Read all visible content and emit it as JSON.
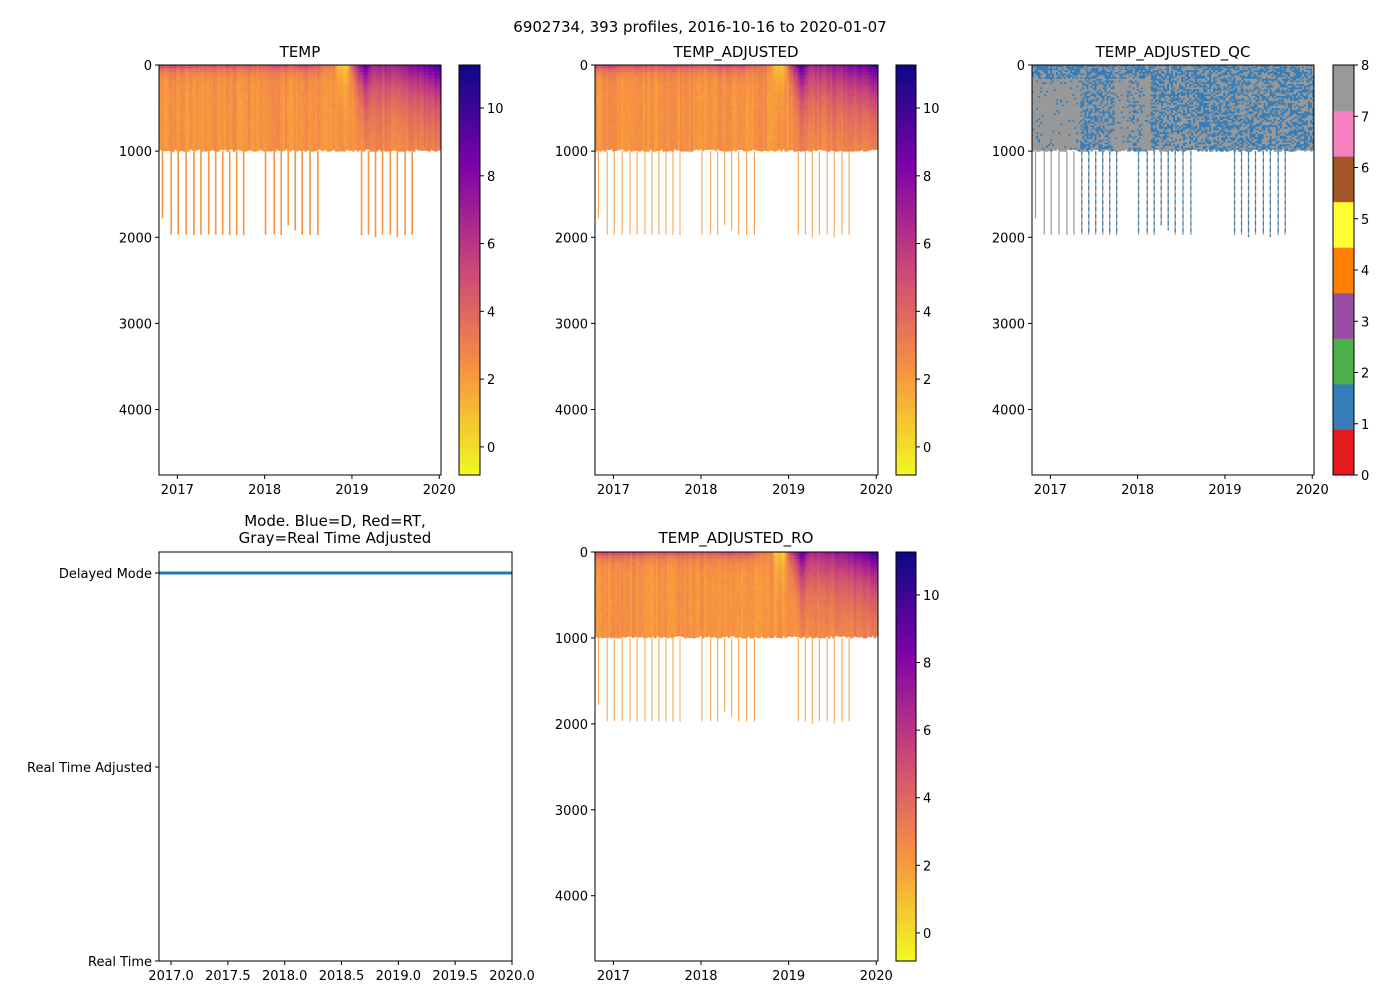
{
  "figure": {
    "suptitle": "6902734, 393 profiles, 2016-10-16 to 2020-01-07",
    "profile_count": 393,
    "date_start": "2016-10-16",
    "date_end": "2020-01-07"
  },
  "chart_data": [
    {
      "id": "temp",
      "type": "heatmap",
      "title": "TEMP",
      "xlim": [
        2016.79,
        2020.02
      ],
      "ylim": [
        4760,
        0
      ],
      "xticks": [
        2017,
        2018,
        2019,
        2020
      ],
      "xtick_labels": [
        "2017",
        "2018",
        "2019",
        "2020"
      ],
      "yticks": [
        0,
        1000,
        2000,
        3000,
        4000
      ],
      "ytick_labels": [
        "0",
        "1000",
        "2000",
        "3000",
        "4000"
      ],
      "colormap": "plasma_r",
      "clim": [
        -0.83,
        11.27
      ],
      "colorbar_ticks": [
        0,
        2,
        4,
        6,
        8,
        10
      ],
      "colorbar_labels": [
        "0",
        "2",
        "4",
        "6",
        "8",
        "10"
      ]
    },
    {
      "id": "adj",
      "type": "heatmap",
      "title": "TEMP_ADJUSTED",
      "xlim": [
        2016.79,
        2020.02
      ],
      "ylim": [
        4760,
        0
      ],
      "xticks": [
        2017,
        2018,
        2019,
        2020
      ],
      "xtick_labels": [
        "2017",
        "2018",
        "2019",
        "2020"
      ],
      "yticks": [
        0,
        1000,
        2000,
        3000,
        4000
      ],
      "ytick_labels": [
        "0",
        "1000",
        "2000",
        "3000",
        "4000"
      ],
      "colormap": "plasma_r",
      "clim": [
        -0.83,
        11.27
      ],
      "colorbar_ticks": [
        0,
        2,
        4,
        6,
        8,
        10
      ],
      "colorbar_labels": [
        "0",
        "2",
        "4",
        "6",
        "8",
        "10"
      ]
    },
    {
      "id": "qc",
      "type": "heatmap",
      "title": "TEMP_ADJUSTED_QC",
      "xlim": [
        2016.79,
        2020.02
      ],
      "ylim": [
        4760,
        0
      ],
      "xticks": [
        2017,
        2018,
        2019,
        2020
      ],
      "xtick_labels": [
        "2017",
        "2018",
        "2019",
        "2020"
      ],
      "yticks": [
        0,
        1000,
        2000,
        3000,
        4000
      ],
      "ytick_labels": [
        "0",
        "1000",
        "2000",
        "3000",
        "4000"
      ],
      "colormap": "Set1",
      "clim": [
        0,
        8
      ],
      "qc_colors": [
        "#e41a1c",
        "#377eb8",
        "#4daf4a",
        "#984ea3",
        "#ff7f00",
        "#ffff33",
        "#a65628",
        "#f781bf",
        "#999999"
      ],
      "qc_values_present": [
        1,
        8
      ],
      "colorbar_ticks": [
        0,
        1,
        2,
        3,
        4,
        5,
        6,
        7,
        8
      ],
      "colorbar_labels": [
        "0",
        "1",
        "2",
        "3",
        "4",
        "5",
        "6",
        "7",
        "8"
      ]
    },
    {
      "id": "mode",
      "type": "line",
      "title": "Mode. Blue=D, Red=RT,",
      "title_line2": "Gray=Real Time Adjusted",
      "xlim": [
        2016.894,
        2020.0
      ],
      "ylim": [
        0,
        2.108
      ],
      "xticks": [
        2017.0,
        2017.5,
        2018.0,
        2018.5,
        2019.0,
        2019.5,
        2020.0
      ],
      "xtick_labels": [
        "2017.0",
        "2017.5",
        "2018.0",
        "2018.5",
        "2019.0",
        "2019.5",
        "2020.0"
      ],
      "yticks": [
        0,
        1,
        2
      ],
      "ytick_labels": [
        "Real Time",
        "Real Time Adjusted",
        "Delayed Mode"
      ],
      "series": [
        {
          "name": "Delayed Mode",
          "color": "#1f77b4",
          "x": [
            2016.79,
            2020.02
          ],
          "y": [
            2,
            2
          ]
        }
      ]
    },
    {
      "id": "ro",
      "type": "heatmap",
      "title": "TEMP_ADJUSTED_RO",
      "xlim": [
        2016.79,
        2020.02
      ],
      "ylim": [
        4760,
        0
      ],
      "xticks": [
        2017,
        2018,
        2019,
        2020
      ],
      "xtick_labels": [
        "2017",
        "2018",
        "2019",
        "2020"
      ],
      "yticks": [
        0,
        1000,
        2000,
        3000,
        4000
      ],
      "ytick_labels": [
        "0",
        "1000",
        "2000",
        "3000",
        "4000"
      ],
      "colormap": "plasma_r",
      "clim": [
        -0.83,
        11.27
      ],
      "colorbar_ticks": [
        0,
        2,
        4,
        6,
        8,
        10
      ],
      "colorbar_labels": [
        "0",
        "2",
        "4",
        "6",
        "8",
        "10"
      ]
    }
  ],
  "temperature_field": {
    "deep_temp_c": 2.3,
    "upper_profile_depth_m": 1000,
    "surface_temp_by_year": [
      [
        2016.79,
        6.0
      ],
      [
        2017.0,
        5.5
      ],
      [
        2017.5,
        5.0
      ],
      [
        2018.0,
        4.8
      ],
      [
        2018.5,
        5.2
      ],
      [
        2018.8,
        3.0
      ],
      [
        2018.85,
        0.6
      ],
      [
        2018.95,
        0.4
      ],
      [
        2019.0,
        4.5
      ],
      [
        2019.15,
        9.5
      ],
      [
        2019.25,
        6.5
      ],
      [
        2019.6,
        7.5
      ],
      [
        2019.9,
        9.0
      ],
      [
        2020.02,
        10.5
      ]
    ],
    "mixing_depth_by_year_m": [
      [
        2016.79,
        60
      ],
      [
        2018.8,
        80
      ],
      [
        2018.9,
        300
      ],
      [
        2019.0,
        120
      ],
      [
        2019.15,
        400
      ],
      [
        2020.02,
        450
      ]
    ],
    "deep_profiles": [
      [
        2016.83,
        1780
      ],
      [
        2016.93,
        1970
      ],
      [
        2017.01,
        1970
      ],
      [
        2017.1,
        1970
      ],
      [
        2017.19,
        1975
      ],
      [
        2017.27,
        1970
      ],
      [
        2017.36,
        1970
      ],
      [
        2017.44,
        1970
      ],
      [
        2017.52,
        1970
      ],
      [
        2017.6,
        1975
      ],
      [
        2017.68,
        1975
      ],
      [
        2017.76,
        1975
      ],
      [
        2018.01,
        1970
      ],
      [
        2018.11,
        1970
      ],
      [
        2018.19,
        1975
      ],
      [
        2018.27,
        1860
      ],
      [
        2018.35,
        1920
      ],
      [
        2018.43,
        1970
      ],
      [
        2018.52,
        1975
      ],
      [
        2018.61,
        1975
      ],
      [
        2019.11,
        1975
      ],
      [
        2019.19,
        1970
      ],
      [
        2019.27,
        2000
      ],
      [
        2019.35,
        1970
      ],
      [
        2019.44,
        1970
      ],
      [
        2019.52,
        2000
      ],
      [
        2019.61,
        1975
      ],
      [
        2019.69,
        1970
      ]
    ]
  }
}
